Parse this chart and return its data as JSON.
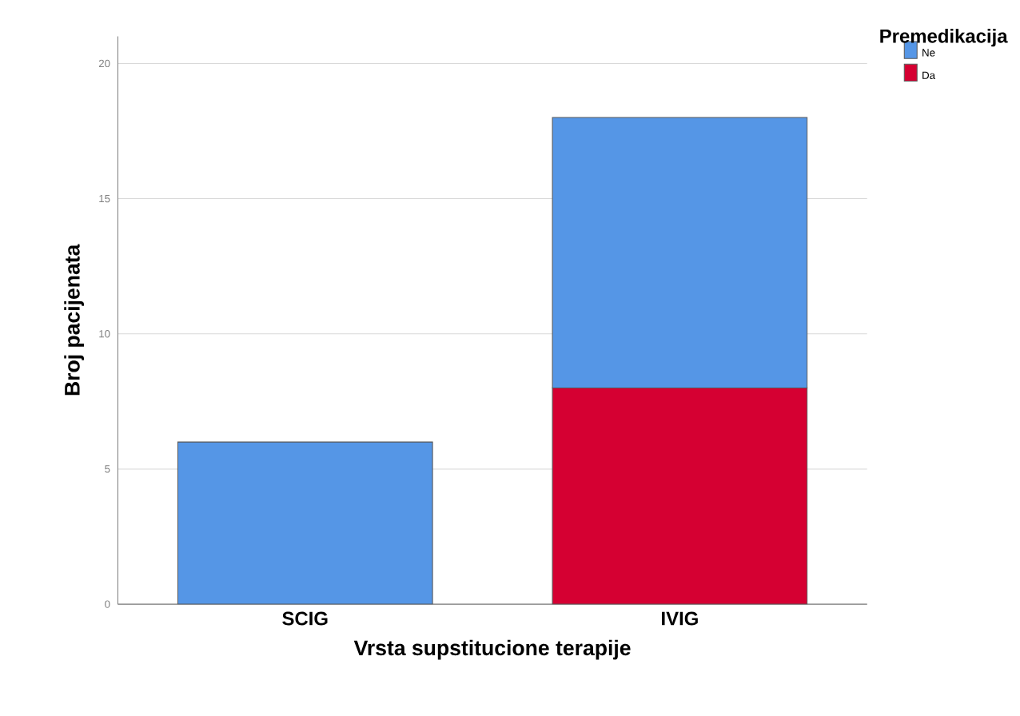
{
  "chart_data": {
    "type": "bar",
    "stacked": true,
    "xlabel": "Vrsta supstitucione terapije",
    "ylabel": "Broj pacijenata",
    "legend_title": "Premedikacija",
    "categories": [
      "SCIG",
      "IVIG"
    ],
    "series": [
      {
        "name": "Da",
        "color": "#d50032",
        "values": [
          0,
          8
        ]
      },
      {
        "name": "Ne",
        "color": "#5596e6",
        "values": [
          6,
          10
        ]
      }
    ],
    "ylim": [
      0,
      21
    ],
    "yticks": [
      0,
      5,
      10,
      15,
      20
    ],
    "grid": "y",
    "legend": "top right"
  }
}
